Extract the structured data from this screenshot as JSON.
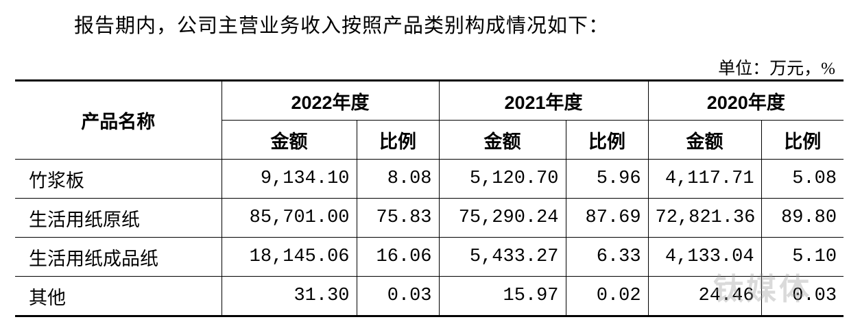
{
  "intro": "报告期内，公司主营业务收入按照产品类别构成情况如下：",
  "unit": "单位：万元，%",
  "table": {
    "corner": "产品名称",
    "years": [
      "2022年度",
      "2021年度",
      "2020年度"
    ],
    "subheaders": [
      "金额",
      "比例"
    ],
    "rows": [
      [
        "竹浆板",
        "9,134.10",
        "8.08",
        "5,120.70",
        "5.96",
        "4,117.71",
        "5.08"
      ],
      [
        "生活用纸原纸",
        "85,701.00",
        "75.83",
        "75,290.24",
        "87.69",
        "72,821.36",
        "89.80"
      ],
      [
        "生活用纸成品纸",
        "18,145.06",
        "16.06",
        "5,433.27",
        "6.33",
        "4,133.04",
        "5.10"
      ],
      [
        "其他",
        "31.30",
        "0.03",
        "15.97",
        "0.02",
        "24.46",
        "0.03"
      ]
    ]
  },
  "watermark": "钛媒体"
}
